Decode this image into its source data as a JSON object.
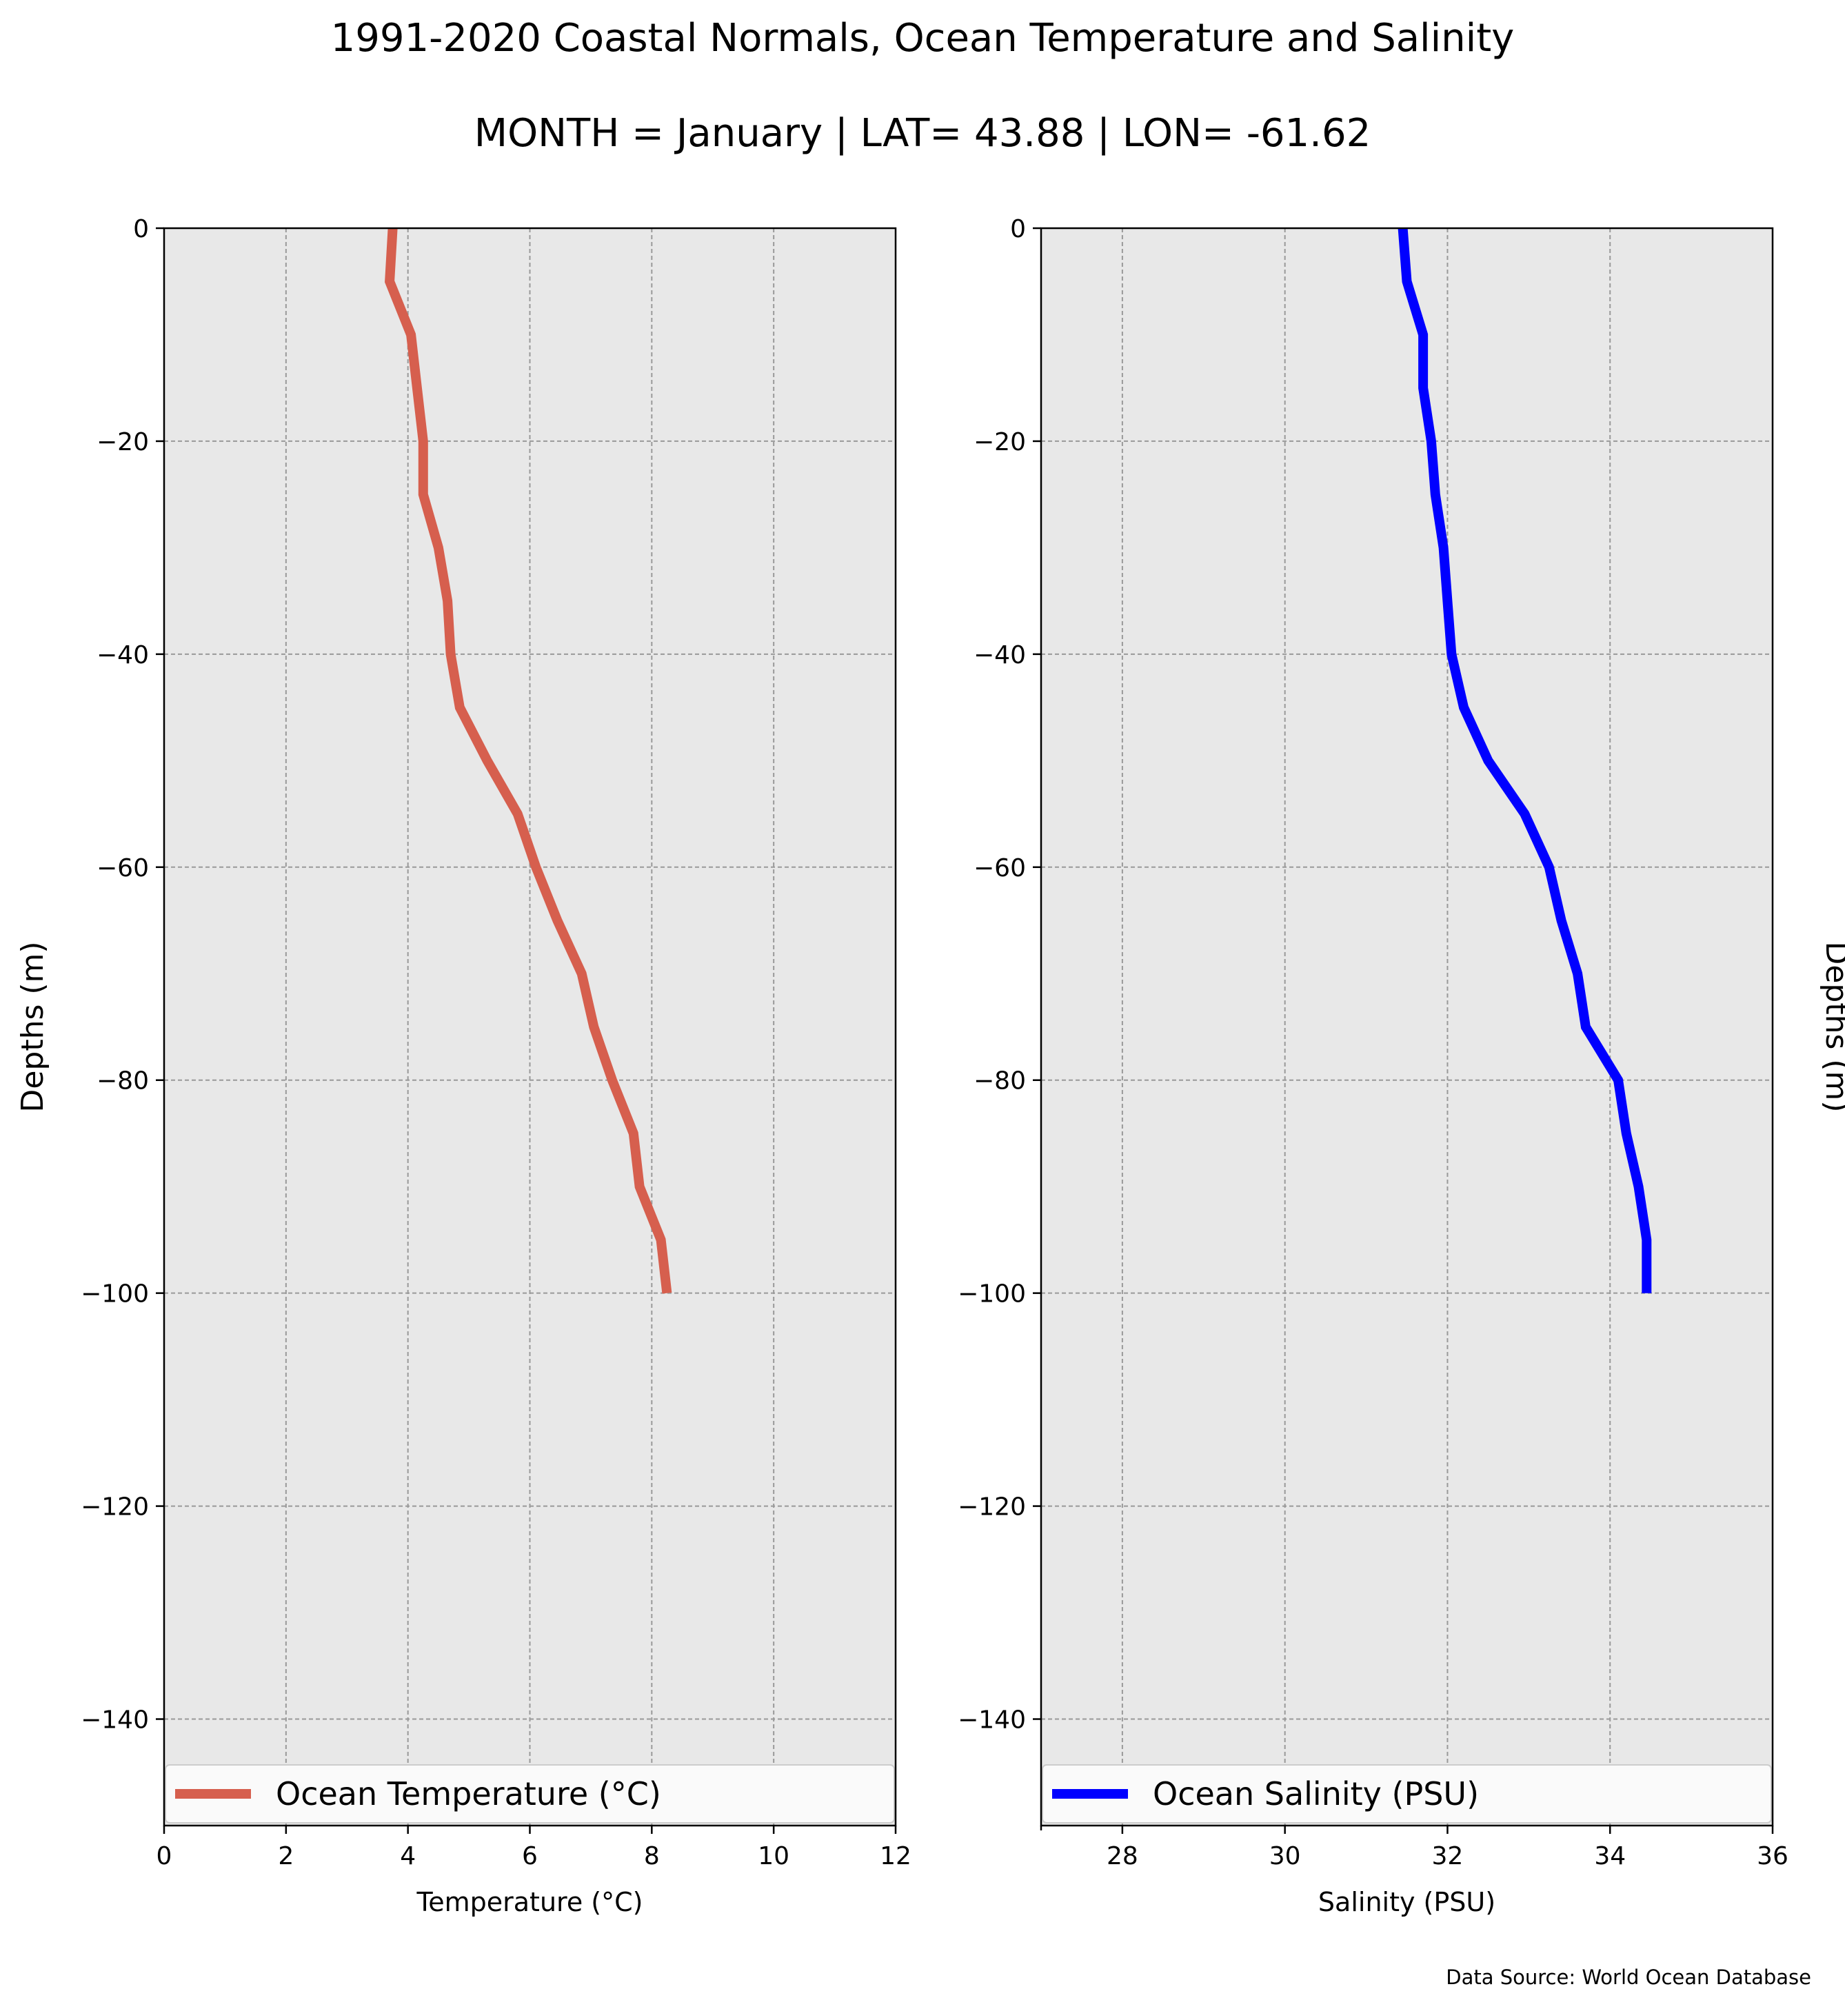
{
  "title": "1991-2020 Coastal Normals, Ocean Temperature and Salinity",
  "subtitle": "MONTH = January | LAT= 43.88 | LON= -61.62",
  "source": "Data Source: World Ocean Database",
  "colors": {
    "temperature": "#d65f4e",
    "salinity": "#0000ff",
    "plot_bg": "#e8e8e8",
    "grid": "#999999"
  },
  "chart_data": [
    {
      "type": "line",
      "xlabel": "Temperature ($^\\circ$C)",
      "xlabel_display": "Temperature (°C)",
      "ylabel": "Depths (m)",
      "ylabel_position": "left",
      "xlim": [
        0,
        12
      ],
      "ylim": [
        -150,
        0
      ],
      "xticks": [
        0,
        2,
        4,
        6,
        8,
        10,
        12
      ],
      "yticks": [
        0,
        -20,
        -40,
        -60,
        -80,
        -100,
        -120,
        -140
      ],
      "grid": true,
      "legend_location": "lower center",
      "series": [
        {
          "name": "Ocean Temperature (°C)",
          "color": "#d65f4e",
          "x": [
            3.75,
            3.7,
            4.05,
            4.15,
            4.25,
            4.25,
            4.5,
            4.65,
            4.7,
            4.85,
            5.3,
            5.8,
            6.1,
            6.45,
            6.85,
            7.05,
            7.35,
            7.7,
            7.8,
            8.15,
            8.25
          ],
          "y": [
            0,
            -5,
            -10,
            -15,
            -20,
            -25,
            -30,
            -35,
            -40,
            -45,
            -50,
            -55,
            -60,
            -65,
            -70,
            -75,
            -80,
            -85,
            -90,
            -95,
            -100
          ]
        }
      ]
    },
    {
      "type": "line",
      "xlabel": "Salinity (PSU)",
      "ylabel": "Depths (m)",
      "ylabel_position": "right",
      "xlim": [
        27,
        36
      ],
      "ylim": [
        -150,
        0
      ],
      "xticks": [
        28,
        30,
        32,
        34,
        36
      ],
      "yticks": [
        0,
        -20,
        -40,
        -60,
        -80,
        -100,
        -120,
        -140
      ],
      "grid": true,
      "legend_location": "lower center",
      "series": [
        {
          "name": "Ocean Salinity (PSU)",
          "color": "#0000ff",
          "x": [
            31.45,
            31.5,
            31.7,
            31.7,
            31.8,
            31.85,
            31.95,
            32.0,
            32.05,
            32.2,
            32.5,
            32.95,
            33.25,
            33.4,
            33.6,
            33.7,
            34.1,
            34.2,
            34.35,
            34.45,
            34.45
          ],
          "y": [
            0,
            -5,
            -10,
            -15,
            -20,
            -25,
            -30,
            -35,
            -40,
            -45,
            -50,
            -55,
            -60,
            -65,
            -70,
            -75,
            -80,
            -85,
            -90,
            -95,
            -100
          ]
        }
      ]
    }
  ]
}
